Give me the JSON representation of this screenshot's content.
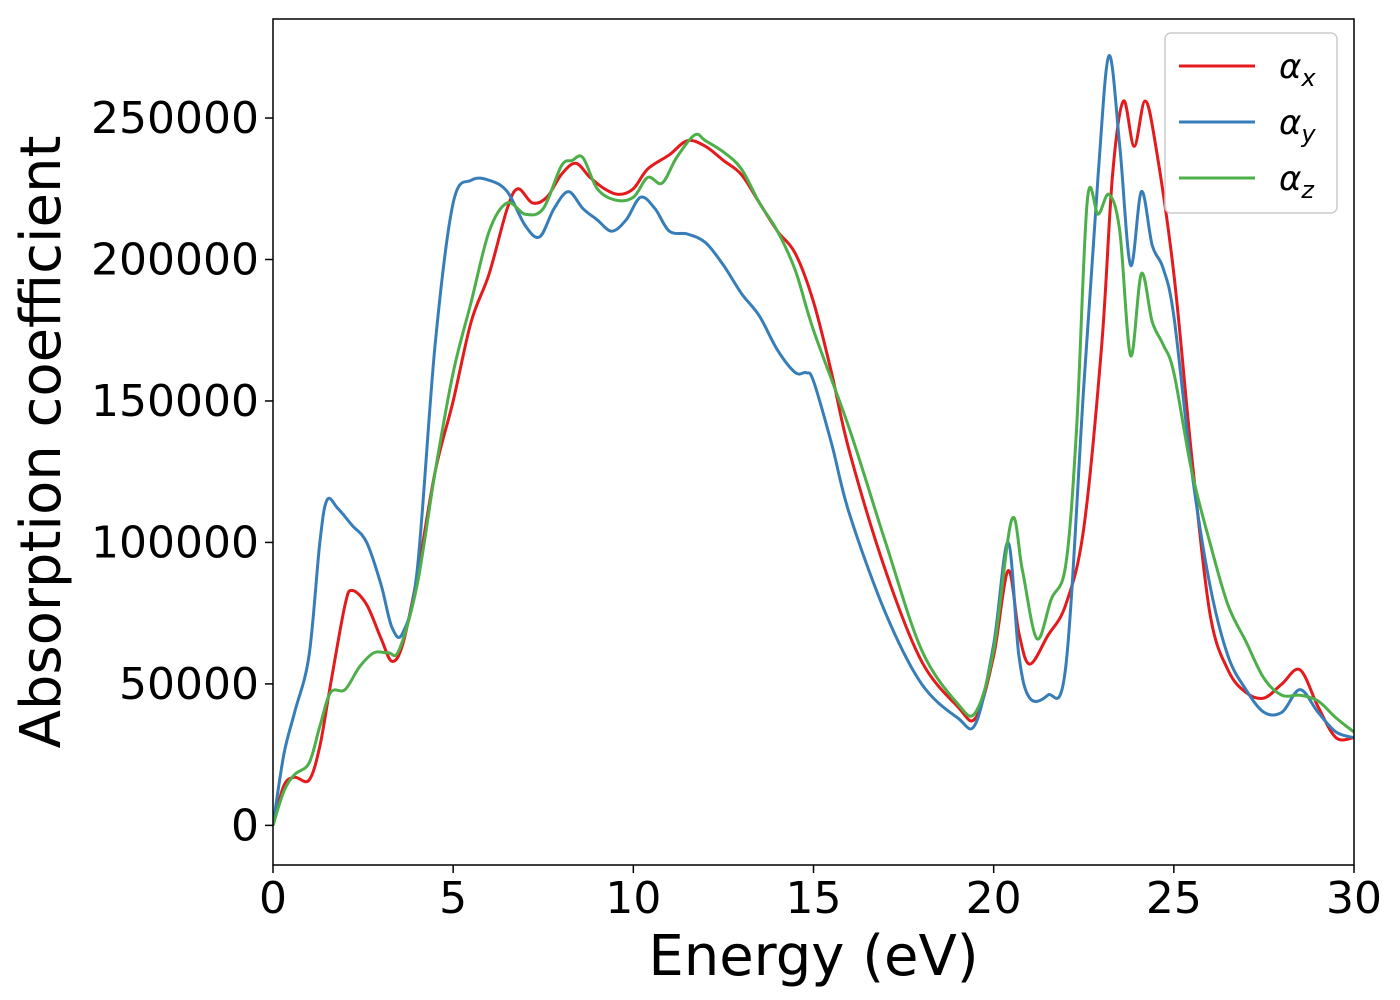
{
  "chart_data": {
    "type": "line",
    "xlabel": "Energy (eV)",
    "ylabel": "Absorption coefficient",
    "xlim": [
      0,
      30
    ],
    "ylim": [
      -14000,
      285000
    ],
    "xticks": [
      0,
      5,
      10,
      15,
      20,
      25,
      30
    ],
    "xtick_labels": [
      "0",
      "5",
      "10",
      "15",
      "20",
      "25",
      "30"
    ],
    "yticks": [
      0,
      50000,
      100000,
      150000,
      200000,
      250000
    ],
    "ytick_labels": [
      "0",
      "50000",
      "100000",
      "150000",
      "200000",
      "250000"
    ],
    "grid": false,
    "legend_position": "top-right",
    "series": [
      {
        "name": "α",
        "subscript": "x",
        "color": "#e41a1c",
        "x": [
          0,
          0.3,
          0.6,
          1.0,
          1.3,
          1.6,
          2.0,
          2.2,
          2.6,
          3.0,
          3.3,
          3.6,
          4.0,
          4.5,
          5.0,
          5.5,
          6.0,
          6.5,
          6.8,
          7.2,
          7.6,
          8.0,
          8.4,
          8.8,
          9.2,
          9.6,
          10.0,
          10.4,
          11.0,
          11.5,
          12.0,
          12.5,
          13.0,
          13.5,
          14.0,
          14.5,
          15.0,
          15.5,
          16.0,
          17.0,
          18.0,
          19.0,
          19.5,
          20.0,
          20.4,
          20.7,
          21.0,
          21.5,
          22.0,
          22.5,
          23.0,
          23.3,
          23.6,
          23.9,
          24.2,
          24.5,
          25.0,
          25.5,
          26.0,
          26.5,
          27.0,
          27.5,
          28.0,
          28.5,
          29.0,
          29.5,
          30.0
        ],
        "y": [
          0,
          14000,
          17000,
          16000,
          28000,
          50000,
          78000,
          83000,
          78000,
          66000,
          58000,
          64000,
          88000,
          125000,
          150000,
          178000,
          195000,
          218000,
          225000,
          220000,
          222000,
          230000,
          234000,
          229000,
          225000,
          223000,
          225000,
          232000,
          237000,
          242000,
          240000,
          235000,
          230000,
          220000,
          210000,
          202000,
          185000,
          160000,
          132000,
          90000,
          58000,
          42000,
          38000,
          60000,
          90000,
          68000,
          57000,
          67000,
          78000,
          105000,
          170000,
          230000,
          256000,
          240000,
          256000,
          240000,
          195000,
          130000,
          75000,
          55000,
          47000,
          45000,
          50000,
          55000,
          42000,
          31000,
          31000
        ]
      },
      {
        "name": "α",
        "subscript": "y",
        "color": "#377eb8",
        "x": [
          0,
          0.3,
          0.6,
          1.0,
          1.3,
          1.5,
          1.8,
          2.2,
          2.6,
          3.0,
          3.3,
          3.6,
          4.0,
          4.5,
          5.0,
          5.5,
          6.0,
          6.5,
          7.0,
          7.4,
          7.8,
          8.2,
          8.6,
          9.0,
          9.4,
          9.8,
          10.2,
          10.6,
          11.0,
          11.5,
          12.0,
          12.5,
          13.0,
          13.5,
          14.0,
          14.5,
          14.8,
          15.0,
          15.5,
          16.0,
          17.0,
          18.0,
          19.0,
          19.5,
          20.0,
          20.4,
          20.7,
          21.0,
          21.5,
          22.0,
          22.5,
          22.9,
          23.2,
          23.5,
          23.8,
          24.1,
          24.4,
          24.7,
          25.0,
          25.5,
          26.0,
          26.5,
          27.0,
          27.5,
          28.0,
          28.5,
          29.0,
          29.5,
          30.0
        ],
        "y": [
          0,
          25000,
          40000,
          60000,
          100000,
          115000,
          112000,
          106000,
          100000,
          85000,
          70000,
          68000,
          90000,
          170000,
          220000,
          228000,
          228000,
          224000,
          212000,
          208000,
          218000,
          224000,
          218000,
          214000,
          210000,
          214000,
          222000,
          218000,
          210000,
          209000,
          206000,
          198000,
          188000,
          180000,
          168000,
          160000,
          160000,
          157000,
          135000,
          110000,
          75000,
          50000,
          38000,
          36000,
          64000,
          100000,
          60000,
          45000,
          46000,
          56000,
          155000,
          230000,
          272000,
          240000,
          198000,
          224000,
          205000,
          197000,
          180000,
          125000,
          85000,
          60000,
          48000,
          40000,
          40000,
          48000,
          40000,
          33000,
          31000
        ]
      },
      {
        "name": "α",
        "subscript": "z",
        "color": "#4daf4a",
        "x": [
          0,
          0.3,
          0.6,
          1.0,
          1.3,
          1.6,
          2.0,
          2.4,
          2.8,
          3.2,
          3.5,
          4.0,
          4.5,
          5.0,
          5.5,
          6.0,
          6.5,
          7.0,
          7.5,
          8.0,
          8.3,
          8.6,
          9.0,
          9.5,
          10.0,
          10.4,
          10.8,
          11.2,
          11.7,
          12.0,
          12.5,
          13.0,
          13.5,
          14.0,
          14.5,
          15.0,
          16.0,
          17.0,
          18.0,
          19.0,
          19.5,
          20.0,
          20.5,
          20.8,
          21.2,
          21.6,
          22.0,
          22.3,
          22.6,
          22.9,
          23.2,
          23.5,
          23.8,
          24.1,
          24.4,
          24.7,
          25.0,
          25.5,
          26.0,
          26.5,
          27.0,
          27.5,
          28.0,
          28.5,
          29.0,
          29.5,
          30.0
        ],
        "y": [
          0,
          12000,
          18000,
          22000,
          35000,
          47000,
          48000,
          56000,
          61000,
          61000,
          62000,
          85000,
          125000,
          160000,
          185000,
          210000,
          220000,
          216000,
          218000,
          233000,
          235000,
          236000,
          225000,
          221000,
          222000,
          229000,
          227000,
          236000,
          244000,
          242000,
          238000,
          232000,
          220000,
          210000,
          196000,
          175000,
          140000,
          100000,
          62000,
          43000,
          40000,
          62000,
          108000,
          90000,
          66000,
          80000,
          92000,
          140000,
          221000,
          216000,
          223000,
          210000,
          166000,
          195000,
          178000,
          170000,
          160000,
          125000,
          100000,
          78000,
          65000,
          52000,
          46000,
          46000,
          44000,
          38000,
          33000
        ]
      }
    ]
  }
}
